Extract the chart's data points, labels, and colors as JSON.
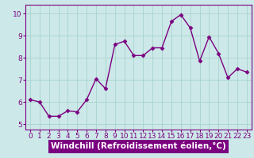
{
  "x": [
    0,
    1,
    2,
    3,
    4,
    5,
    6,
    7,
    8,
    9,
    10,
    11,
    12,
    13,
    14,
    15,
    16,
    17,
    18,
    19,
    20,
    21,
    22,
    23
  ],
  "y": [
    6.1,
    6.0,
    5.35,
    5.35,
    5.6,
    5.55,
    6.1,
    7.05,
    6.6,
    8.6,
    8.75,
    8.1,
    8.1,
    8.45,
    8.45,
    9.65,
    9.95,
    9.35,
    7.85,
    8.95,
    8.2,
    7.1,
    7.5,
    7.35
  ],
  "line_color": "#7b0080",
  "marker": "D",
  "markersize": 2.5,
  "linewidth": 1.0,
  "xlabel": "Windchill (Refroidissement éolien,°C)",
  "xlabel_fontsize": 7.5,
  "bg_color": "#cce8e8",
  "grid_color": "#a8d4cc",
  "xlim": [
    -0.5,
    23.5
  ],
  "ylim": [
    4.75,
    10.4
  ],
  "yticks": [
    5,
    6,
    7,
    8,
    9,
    10
  ],
  "xticks": [
    0,
    1,
    2,
    3,
    4,
    5,
    6,
    7,
    8,
    9,
    10,
    11,
    12,
    13,
    14,
    15,
    16,
    17,
    18,
    19,
    20,
    21,
    22,
    23
  ],
  "tick_fontsize": 6.5,
  "spine_color": "#7b0080",
  "xlabel_bg": "#7b0080",
  "xlabel_fg": "#ffffff"
}
